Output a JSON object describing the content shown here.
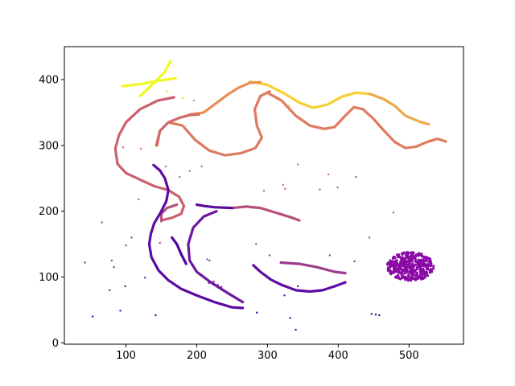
{
  "chart_data": {
    "type": "scatter",
    "title": "",
    "xlabel": "",
    "ylabel": "",
    "xlim": [
      13,
      577
    ],
    "ylim": [
      -2,
      450
    ],
    "x_ticks": [
      100,
      200,
      300,
      400,
      500
    ],
    "y_ticks": [
      0,
      100,
      200,
      300,
      400
    ],
    "grid": false,
    "colormap": "plasma",
    "curves": [
      {
        "color": "#f0f921",
        "points": [
          [
            120,
            375
          ],
          [
            140,
            395
          ],
          [
            155,
            412
          ],
          [
            163,
            428
          ]
        ]
      },
      {
        "color": "#f0f921",
        "points": [
          [
            95,
            390
          ],
          [
            120,
            393
          ],
          [
            145,
            398
          ],
          [
            170,
            402
          ]
        ]
      },
      {
        "color": "#f5cf33",
        "points": [
          [
            275,
            397
          ],
          [
            300,
            392
          ],
          [
            325,
            378
          ],
          [
            345,
            365
          ],
          [
            365,
            357
          ],
          [
            385,
            362
          ],
          [
            405,
            374
          ],
          [
            425,
            380
          ],
          [
            445,
            378
          ]
        ]
      },
      {
        "color": "#eda84c",
        "points": [
          [
            445,
            378
          ],
          [
            465,
            370
          ],
          [
            480,
            360
          ],
          [
            495,
            345
          ],
          [
            515,
            336
          ],
          [
            528,
            332
          ]
        ]
      },
      {
        "color": "#e88e57",
        "points": [
          [
            190,
            347
          ],
          [
            210,
            350
          ],
          [
            225,
            362
          ],
          [
            245,
            378
          ],
          [
            260,
            388
          ],
          [
            275,
            395
          ],
          [
            290,
            396
          ]
        ]
      },
      {
        "color": "#e07a5c",
        "points": [
          [
            300,
            380
          ],
          [
            320,
            368
          ],
          [
            340,
            345
          ],
          [
            360,
            330
          ],
          [
            380,
            325
          ],
          [
            395,
            328
          ],
          [
            408,
            343
          ],
          [
            422,
            358
          ],
          [
            435,
            355
          ],
          [
            450,
            340
          ],
          [
            465,
            322
          ],
          [
            480,
            305
          ],
          [
            495,
            296
          ],
          [
            510,
            298
          ],
          [
            525,
            305
          ],
          [
            540,
            310
          ],
          [
            552,
            306
          ]
        ]
      },
      {
        "color": "#dd7a60",
        "points": [
          [
            303,
            382
          ],
          [
            290,
            375
          ],
          [
            282,
            355
          ],
          [
            285,
            330
          ],
          [
            292,
            312
          ],
          [
            283,
            296
          ],
          [
            262,
            288
          ],
          [
            240,
            285
          ],
          [
            218,
            292
          ],
          [
            198,
            308
          ],
          [
            180,
            330
          ],
          [
            160,
            335
          ],
          [
            148,
            322
          ],
          [
            144,
            300
          ]
        ]
      },
      {
        "color": "#d06a6a",
        "points": [
          [
            143,
            300
          ],
          [
            148,
            322
          ],
          [
            160,
            335
          ],
          [
            176,
            342
          ],
          [
            190,
            346
          ],
          [
            203,
            347
          ]
        ]
      },
      {
        "color": "#cc6070",
        "points": [
          [
            168,
            373
          ],
          [
            145,
            368
          ],
          [
            120,
            355
          ],
          [
            100,
            335
          ],
          [
            90,
            315
          ],
          [
            85,
            295
          ],
          [
            88,
            272
          ],
          [
            100,
            258
          ],
          [
            120,
            248
          ],
          [
            140,
            238
          ],
          [
            160,
            232
          ],
          [
            175,
            222
          ],
          [
            182,
            208
          ],
          [
            178,
            196
          ],
          [
            165,
            190
          ],
          [
            150,
            186
          ]
        ]
      },
      {
        "color": "#b8527a",
        "points": [
          [
            150,
            185
          ],
          [
            150,
            196
          ],
          [
            158,
            205
          ],
          [
            172,
            210
          ]
        ]
      },
      {
        "color": "#b5507b",
        "points": [
          [
            250,
            205
          ],
          [
            270,
            207
          ],
          [
            290,
            205
          ],
          [
            305,
            200
          ],
          [
            320,
            195
          ],
          [
            335,
            190
          ],
          [
            345,
            186
          ]
        ]
      },
      {
        "color": "#9c3d8f",
        "points": [
          [
            319,
            122
          ],
          [
            345,
            120
          ],
          [
            370,
            115
          ],
          [
            395,
            108
          ],
          [
            410,
            106
          ]
        ]
      },
      {
        "color": "#6e17a0",
        "points": [
          [
            228,
            200
          ],
          [
            210,
            192
          ],
          [
            195,
            175
          ],
          [
            188,
            150
          ],
          [
            190,
            125
          ],
          [
            200,
            108
          ],
          [
            220,
            92
          ],
          [
            245,
            75
          ],
          [
            265,
            62
          ]
        ]
      },
      {
        "color": "#5c0aa1",
        "points": [
          [
            139,
            270
          ],
          [
            148,
            262
          ],
          [
            155,
            250
          ],
          [
            160,
            232
          ],
          [
            157,
            215
          ],
          [
            149,
            198
          ],
          [
            140,
            182
          ],
          [
            135,
            165
          ],
          [
            133,
            150
          ],
          [
            136,
            130
          ],
          [
            146,
            110
          ],
          [
            160,
            95
          ],
          [
            178,
            82
          ],
          [
            200,
            72
          ],
          [
            225,
            62
          ],
          [
            250,
            54
          ],
          [
            265,
            53
          ]
        ]
      },
      {
        "color": "#5f0ca3",
        "points": [
          [
            280,
            118
          ],
          [
            290,
            108
          ],
          [
            305,
            96
          ],
          [
            320,
            88
          ],
          [
            340,
            80
          ],
          [
            360,
            78
          ],
          [
            378,
            80
          ],
          [
            395,
            86
          ],
          [
            410,
            92
          ]
        ]
      },
      {
        "color": "#5a0a9e",
        "points": [
          [
            200,
            210
          ],
          [
            210,
            208
          ],
          [
            225,
            206
          ],
          [
            250,
            205
          ]
        ]
      },
      {
        "color": "#4c05a0",
        "points": [
          [
            165,
            160
          ],
          [
            172,
            150
          ],
          [
            178,
            135
          ],
          [
            185,
            120
          ]
        ]
      }
    ],
    "dots": [
      {
        "x": 158,
        "y": 382,
        "color": "#f5cf33"
      },
      {
        "x": 180,
        "y": 372,
        "color": "#f5cf33"
      },
      {
        "x": 330,
        "y": 360,
        "color": "#eda84c"
      },
      {
        "x": 196,
        "y": 368,
        "color": "#e88e57"
      },
      {
        "x": 96,
        "y": 297,
        "color": "#d06a6a"
      },
      {
        "x": 121,
        "y": 295,
        "color": "#d06a6a"
      },
      {
        "x": 156,
        "y": 268,
        "color": "#c9656c"
      },
      {
        "x": 207,
        "y": 268,
        "color": "#c9656c"
      },
      {
        "x": 176,
        "y": 252,
        "color": "#c16070"
      },
      {
        "x": 190,
        "y": 261,
        "color": "#c16070"
      },
      {
        "x": 295,
        "y": 231,
        "color": "#ba5875"
      },
      {
        "x": 325,
        "y": 234,
        "color": "#ba5875"
      },
      {
        "x": 374,
        "y": 233,
        "color": "#b8557a"
      },
      {
        "x": 399,
        "y": 236,
        "color": "#b8557a"
      },
      {
        "x": 425,
        "y": 252,
        "color": "#b8557a"
      },
      {
        "x": 343,
        "y": 271,
        "color": "#c9656c"
      },
      {
        "x": 386,
        "y": 256,
        "color": "#cc6070"
      },
      {
        "x": 322,
        "y": 240,
        "color": "#c16070"
      },
      {
        "x": 122,
        "y": 246,
        "color": "#bf5a76"
      },
      {
        "x": 478,
        "y": 198,
        "color": "#b8527a"
      },
      {
        "x": 118,
        "y": 218,
        "color": "#b5507b"
      },
      {
        "x": 66,
        "y": 183,
        "color": "#a9457f"
      },
      {
        "x": 100,
        "y": 148,
        "color": "#a04088"
      },
      {
        "x": 80,
        "y": 125,
        "color": "#9c3d8f"
      },
      {
        "x": 108,
        "y": 160,
        "color": "#9c3d8f"
      },
      {
        "x": 148,
        "y": 152,
        "color": "#9c3d8f"
      },
      {
        "x": 42,
        "y": 122,
        "color": "#8f2f96"
      },
      {
        "x": 83,
        "y": 115,
        "color": "#8f2f96"
      },
      {
        "x": 284,
        "y": 150,
        "color": "#a04088"
      },
      {
        "x": 303,
        "y": 133,
        "color": "#9c3d8f"
      },
      {
        "x": 388,
        "y": 133,
        "color": "#9c3d8f"
      },
      {
        "x": 444,
        "y": 160,
        "color": "#9c3d8f"
      },
      {
        "x": 423,
        "y": 124,
        "color": "#8f2f96"
      },
      {
        "x": 215,
        "y": 127,
        "color": "#9c3d8f"
      },
      {
        "x": 218,
        "y": 125,
        "color": "#9c3d8f"
      },
      {
        "x": 99,
        "y": 86,
        "color": "#6e17a0"
      },
      {
        "x": 77,
        "y": 80,
        "color": "#6a14a2"
      },
      {
        "x": 127,
        "y": 99,
        "color": "#6a14a2"
      },
      {
        "x": 217,
        "y": 91,
        "color": "#7a1ea0"
      },
      {
        "x": 224,
        "y": 93,
        "color": "#7a1ea0"
      },
      {
        "x": 230,
        "y": 88,
        "color": "#7a1ea0"
      },
      {
        "x": 235,
        "y": 85,
        "color": "#7a1ea0"
      },
      {
        "x": 324,
        "y": 72,
        "color": "#5c0aa1"
      },
      {
        "x": 343,
        "y": 86,
        "color": "#5c0aa1"
      },
      {
        "x": 92,
        "y": 49,
        "color": "#3a049a"
      },
      {
        "x": 53,
        "y": 40,
        "color": "#3a049a"
      },
      {
        "x": 142,
        "y": 42,
        "color": "#3a049a"
      },
      {
        "x": 285,
        "y": 46,
        "color": "#3a049a"
      },
      {
        "x": 332,
        "y": 38,
        "color": "#3a049a"
      },
      {
        "x": 340,
        "y": 20,
        "color": "#220690"
      },
      {
        "x": 447,
        "y": 44,
        "color": "#3a049a"
      },
      {
        "x": 453,
        "y": 43,
        "color": "#3a049a"
      },
      {
        "x": 458,
        "y": 42,
        "color": "#3a049a"
      }
    ],
    "clusters": [
      {
        "x": 502,
        "y": 116,
        "rx": 33,
        "ry": 22,
        "count": 420,
        "color": "#8a0aa6"
      }
    ]
  }
}
